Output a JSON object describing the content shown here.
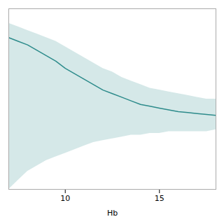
{
  "chart_data": {
    "type": "line",
    "xlabel": "Hb",
    "x": [
      7.0,
      7.5,
      8.0,
      8.5,
      9.0,
      9.5,
      10.0,
      10.5,
      11.0,
      11.5,
      12.0,
      12.5,
      13.0,
      13.5,
      14.0,
      14.5,
      15.0,
      15.5,
      16.0,
      16.5,
      17.0,
      17.5,
      18.0
    ],
    "values": [
      0.74,
      0.72,
      0.7,
      0.67,
      0.64,
      0.61,
      0.57,
      0.54,
      0.51,
      0.48,
      0.45,
      0.43,
      0.41,
      0.39,
      0.37,
      0.36,
      0.35,
      0.34,
      0.33,
      0.325,
      0.32,
      0.315,
      0.31
    ],
    "upper": [
      0.82,
      0.8,
      0.78,
      0.76,
      0.74,
      0.72,
      0.69,
      0.66,
      0.63,
      0.6,
      0.57,
      0.55,
      0.52,
      0.5,
      0.48,
      0.46,
      0.45,
      0.44,
      0.43,
      0.42,
      0.41,
      0.4,
      0.4
    ],
    "lower": [
      -0.1,
      -0.05,
      0.0,
      0.03,
      0.06,
      0.08,
      0.1,
      0.12,
      0.14,
      0.16,
      0.17,
      0.18,
      0.19,
      0.2,
      0.2,
      0.21,
      0.21,
      0.22,
      0.22,
      0.22,
      0.22,
      0.22,
      0.23
    ],
    "color": "#2d8b8b",
    "xlim": [
      7.0,
      18.0
    ],
    "xticks": [
      10,
      15
    ],
    "ylim": [
      -0.1,
      0.9
    ],
    "tick_labels": "x",
    "grid": false
  }
}
